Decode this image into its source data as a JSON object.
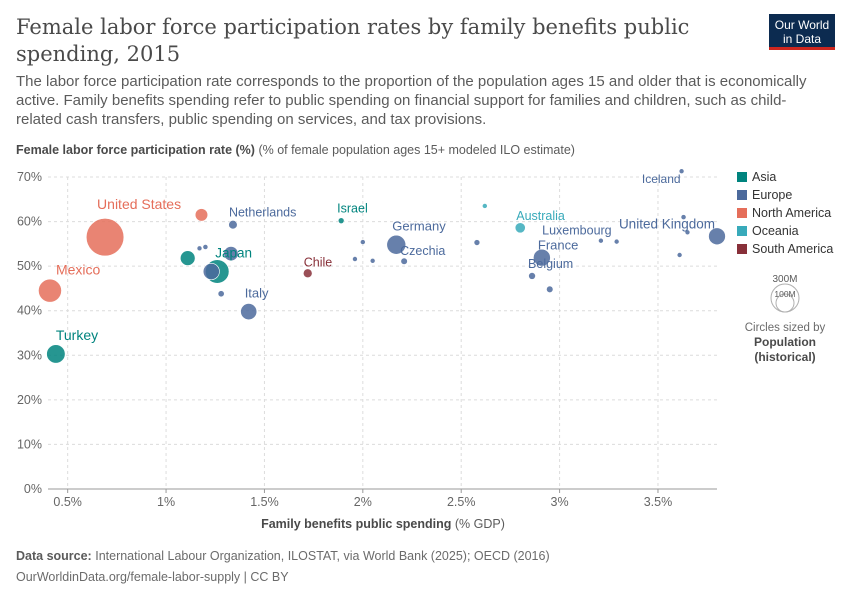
{
  "header": {
    "title": "Female labor force participation rates by family benefits public spending, 2015",
    "subtitle": "The labor force participation rate corresponds to the proportion of the population ages 15 and older that is economically active. Family benefits spending refer to public spending on financial support for families and children, such as child-related cash transfers, public spending on services, and tax provisions.",
    "logo_line1": "Our World",
    "logo_line2": "in Data"
  },
  "axes": {
    "ylabel_bold": "Female labor force participation rate (%)",
    "ylabel_rest": "(% of female population ages 15+ modeled ILO estimate)",
    "xlabel_bold": "Family benefits public spending",
    "xlabel_rest": "(% GDP)"
  },
  "legend": {
    "items": [
      {
        "label": "Asia",
        "color": "#00847e"
      },
      {
        "label": "Europe",
        "color": "#4c6a9c"
      },
      {
        "label": "North America",
        "color": "#e56e5a"
      },
      {
        "label": "Oceania",
        "color": "#38aaba"
      },
      {
        "label": "South America",
        "color": "#883039"
      }
    ],
    "size_big": "300M",
    "size_small": "100M",
    "size_note_line1": "Circles sized by",
    "size_note_line2": "Population",
    "size_note_line3": "(historical)"
  },
  "footer": {
    "source_label": "Data source:",
    "source_text": "International Labour Organization, ILOSTAT, via World Bank (2025); OECD (2016)",
    "url": "OurWorldinData.org/female-labor-supply | CC BY"
  },
  "chart_data": {
    "type": "scatter",
    "xlim": [
      0.4,
      3.8
    ],
    "ylim": [
      0,
      70
    ],
    "x_ticks": [
      0.5,
      1,
      1.5,
      2,
      2.5,
      3,
      3.5
    ],
    "x_tick_labels": [
      "0.5%",
      "1%",
      "1.5%",
      "2%",
      "2.5%",
      "3%",
      "3.5%"
    ],
    "y_ticks": [
      0,
      10,
      20,
      30,
      40,
      50,
      60,
      70
    ],
    "y_tick_labels": [
      "0%",
      "10%",
      "20%",
      "30%",
      "40%",
      "50%",
      "60%",
      "70%"
    ],
    "grid": true,
    "legend_position": "right",
    "points": [
      {
        "label": "United States",
        "x": 0.69,
        "y": 56.5,
        "pop": 321,
        "region": "North America",
        "show_label": true
      },
      {
        "label": "",
        "x": 1.18,
        "y": 61.5,
        "pop": 36,
        "region": "North America",
        "show_label": false
      },
      {
        "label": "Mexico",
        "x": 0.41,
        "y": 44.5,
        "pop": 121,
        "region": "North America",
        "show_label": true
      },
      {
        "label": "Turkey",
        "x": 0.44,
        "y": 30.3,
        "pop": 78,
        "region": "Asia",
        "show_label": true
      },
      {
        "label": "Japan",
        "x": 1.26,
        "y": 48.8,
        "pop": 127,
        "region": "Asia",
        "show_label": true
      },
      {
        "label": "",
        "x": 1.11,
        "y": 51.8,
        "pop": 50,
        "region": "Asia",
        "show_label": false
      },
      {
        "label": "Israel",
        "x": 1.89,
        "y": 60.2,
        "pop": 8,
        "region": "Asia",
        "show_label": true
      },
      {
        "label": "Netherlands",
        "x": 1.34,
        "y": 59.3,
        "pop": 17,
        "region": "Europe",
        "show_label": true
      },
      {
        "label": "",
        "x": 1.33,
        "y": 52.8,
        "pop": 47,
        "region": "Europe",
        "show_label": false
      },
      {
        "label": "",
        "x": 1.23,
        "y": 48.8,
        "pop": 60,
        "region": "Europe",
        "show_label": false
      },
      {
        "label": "",
        "x": 1.17,
        "y": 54.0,
        "pop": 4,
        "region": "Europe",
        "show_label": false
      },
      {
        "label": "",
        "x": 1.2,
        "y": 54.3,
        "pop": 6,
        "region": "Europe",
        "show_label": false
      },
      {
        "label": "",
        "x": 1.28,
        "y": 43.8,
        "pop": 9,
        "region": "Europe",
        "show_label": false
      },
      {
        "label": "Italy",
        "x": 1.42,
        "y": 39.8,
        "pop": 60,
        "region": "Europe",
        "show_label": true
      },
      {
        "label": "Chile",
        "x": 1.72,
        "y": 48.4,
        "pop": 18,
        "region": "South America",
        "show_label": true
      },
      {
        "label": "",
        "x": 1.96,
        "y": 51.6,
        "pop": 3,
        "region": "Europe",
        "show_label": false
      },
      {
        "label": "",
        "x": 2.0,
        "y": 55.4,
        "pop": 2,
        "region": "Europe",
        "show_label": false
      },
      {
        "label": "",
        "x": 2.05,
        "y": 51.2,
        "pop": 3,
        "region": "Europe",
        "show_label": false
      },
      {
        "label": "Germany",
        "x": 2.17,
        "y": 54.8,
        "pop": 82,
        "region": "Europe",
        "show_label": true
      },
      {
        "label": "Czechia",
        "x": 2.21,
        "y": 51.1,
        "pop": 10,
        "region": "Europe",
        "show_label": true
      },
      {
        "label": "",
        "x": 2.58,
        "y": 55.3,
        "pop": 8,
        "region": "Europe",
        "show_label": false
      },
      {
        "label": "",
        "x": 2.62,
        "y": 63.5,
        "pop": 4,
        "region": "Oceania",
        "show_label": false
      },
      {
        "label": "Australia",
        "x": 2.8,
        "y": 58.6,
        "pop": 24,
        "region": "Oceania",
        "show_label": true
      },
      {
        "label": "France",
        "x": 2.91,
        "y": 51.9,
        "pop": 66,
        "region": "Europe",
        "show_label": true
      },
      {
        "label": "Belgium",
        "x": 2.86,
        "y": 47.8,
        "pop": 11,
        "region": "Europe",
        "show_label": true
      },
      {
        "label": "",
        "x": 2.95,
        "y": 44.8,
        "pop": 10,
        "region": "Europe",
        "show_label": false
      },
      {
        "label": "",
        "x": 3.21,
        "y": 55.7,
        "pop": 5,
        "region": "Europe",
        "show_label": false
      },
      {
        "label": "Luxembourg",
        "x": 3.29,
        "y": 55.5,
        "pop": 1,
        "region": "Europe",
        "show_label": true
      },
      {
        "label": "Iceland",
        "x": 3.62,
        "y": 71.3,
        "pop": 1,
        "region": "Europe",
        "show_label": true
      },
      {
        "label": "",
        "x": 3.61,
        "y": 52.5,
        "pop": 5,
        "region": "Europe",
        "show_label": false
      },
      {
        "label": "",
        "x": 3.63,
        "y": 61.0,
        "pop": 6,
        "region": "Europe",
        "show_label": false
      },
      {
        "label": "",
        "x": 3.65,
        "y": 57.6,
        "pop": 5,
        "region": "Europe",
        "show_label": false
      },
      {
        "label": "United Kingdom",
        "x": 3.8,
        "y": 56.7,
        "pop": 65,
        "region": "Europe",
        "show_label": true
      }
    ]
  }
}
